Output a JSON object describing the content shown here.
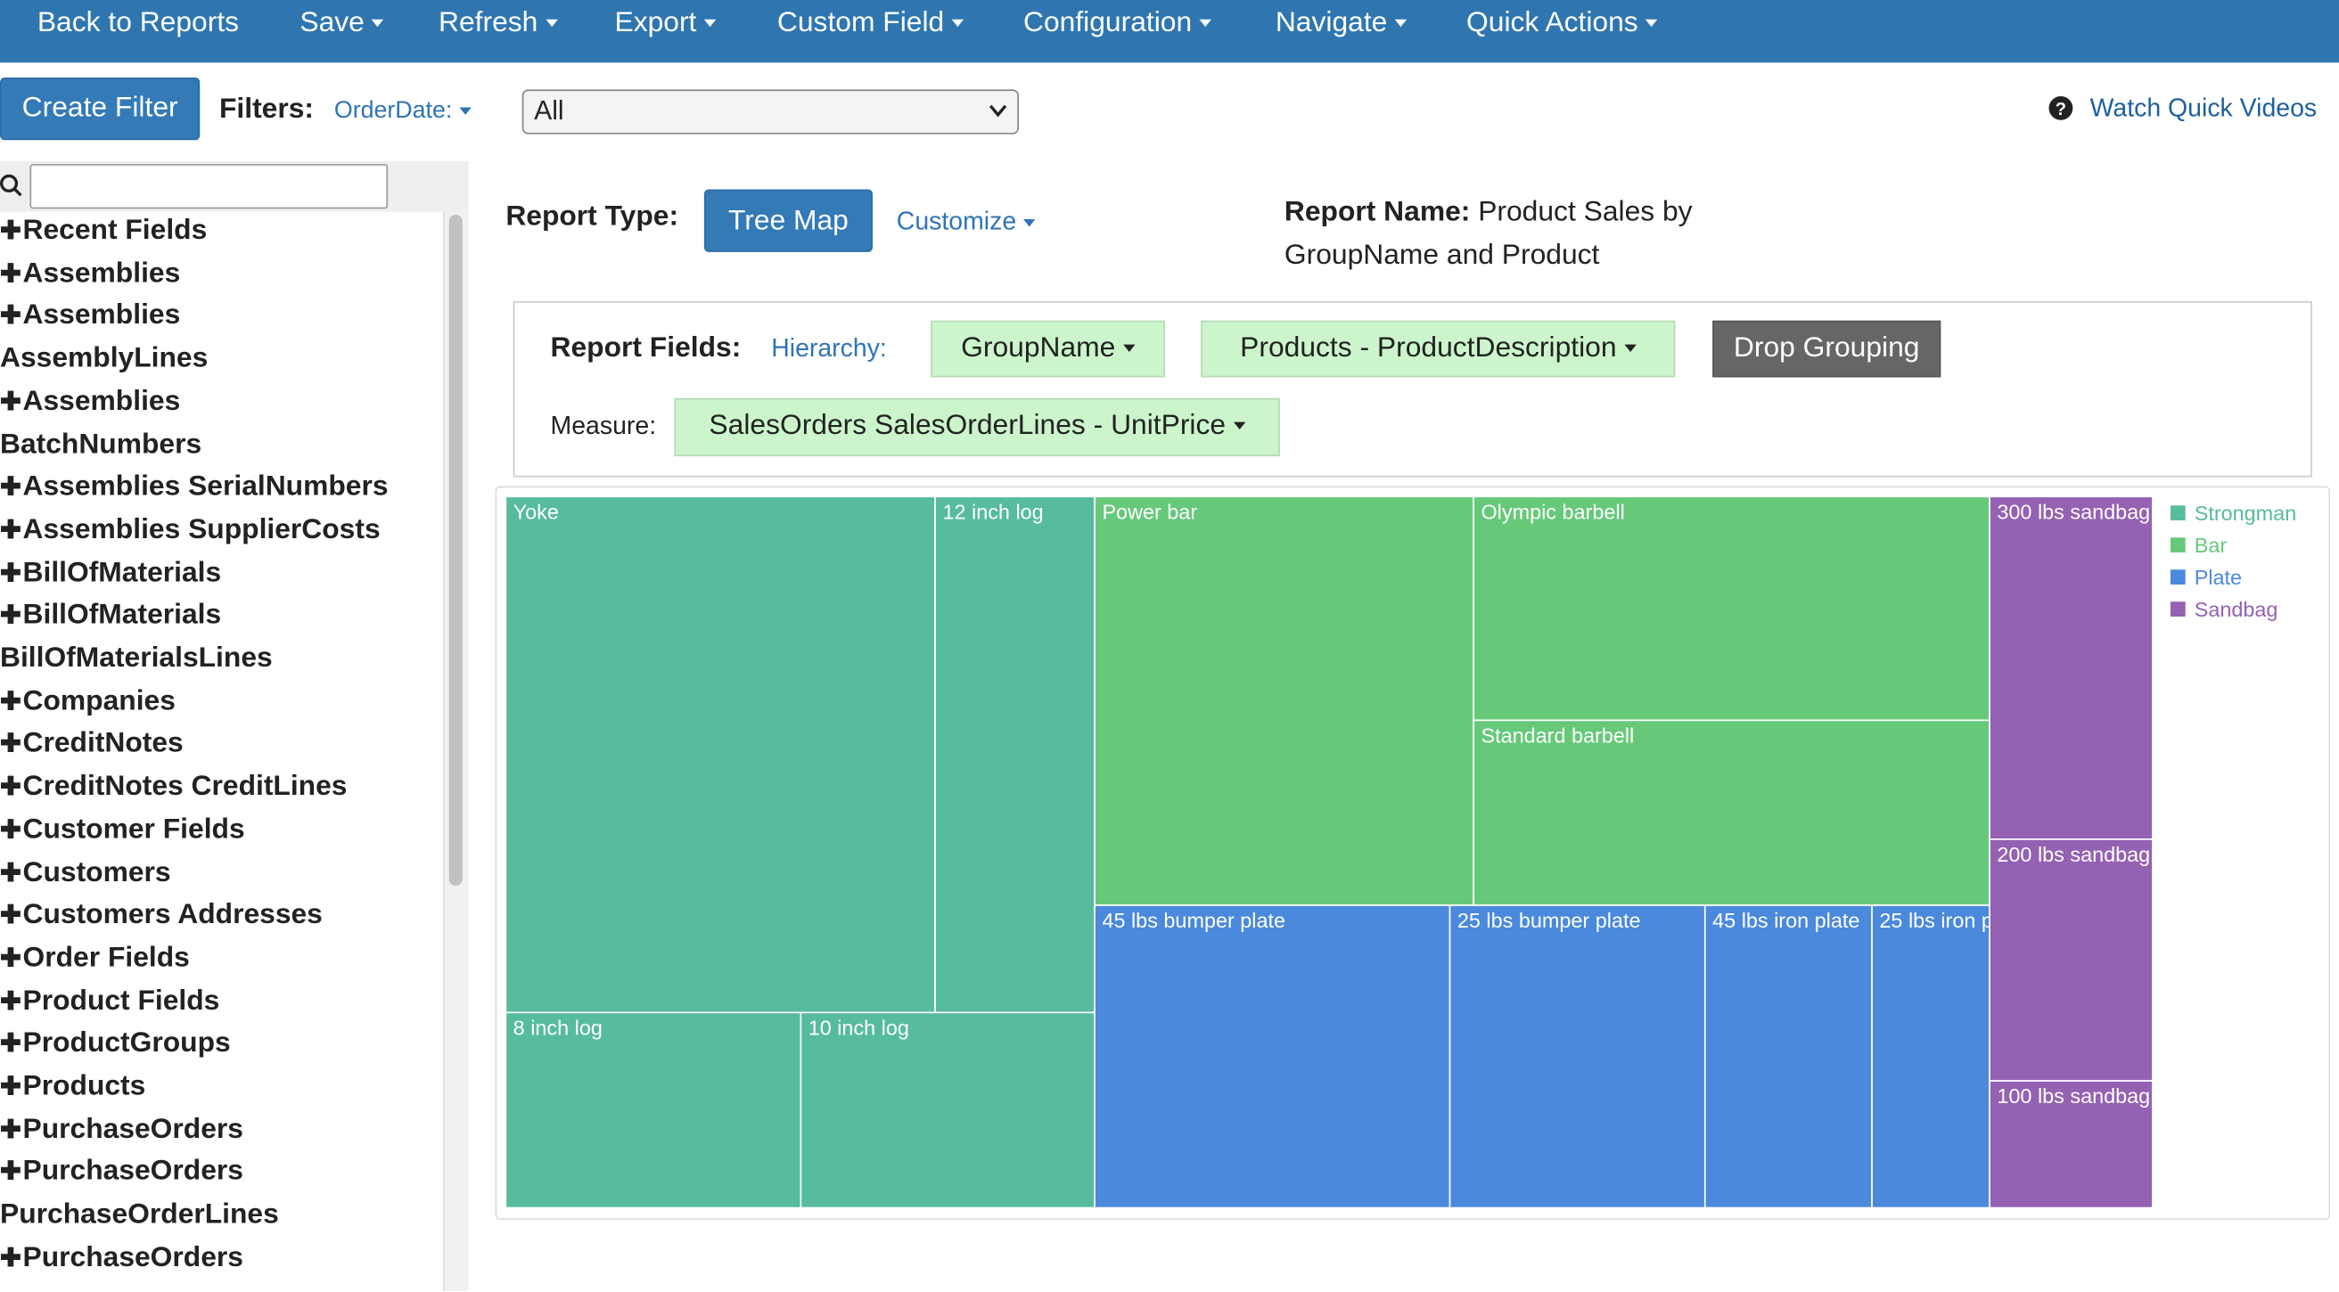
{
  "nav": {
    "items": [
      "Back to Reports",
      "Save",
      "Refresh",
      "Export",
      "Custom Field",
      "Configuration",
      "Navigate",
      "Quick Actions"
    ],
    "dropdown": [
      false,
      true,
      true,
      true,
      true,
      true,
      true,
      true
    ]
  },
  "filters": {
    "create_filter": "Create Filter",
    "label": "Filters:",
    "field": "OrderDate:",
    "selected": "All",
    "help": "Watch Quick Videos"
  },
  "sidebar": {
    "items": [
      {
        "text": "Recent Fields",
        "expandable": true
      },
      {
        "text": "Assemblies",
        "expandable": true
      },
      {
        "text": "Assemblies",
        "expandable": true
      },
      {
        "text": "AssemblyLines",
        "expandable": false
      },
      {
        "text": "Assemblies",
        "expandable": true
      },
      {
        "text": "BatchNumbers",
        "expandable": false
      },
      {
        "text": "Assemblies SerialNumbers",
        "expandable": true
      },
      {
        "text": "Assemblies SupplierCosts",
        "expandable": true
      },
      {
        "text": "BillOfMaterials",
        "expandable": true
      },
      {
        "text": "BillOfMaterials",
        "expandable": true
      },
      {
        "text": "BillOfMaterialsLines",
        "expandable": false
      },
      {
        "text": "Companies",
        "expandable": true
      },
      {
        "text": "CreditNotes",
        "expandable": true
      },
      {
        "text": "CreditNotes CreditLines",
        "expandable": true
      },
      {
        "text": "Customer Fields",
        "expandable": true
      },
      {
        "text": "Customers",
        "expandable": true
      },
      {
        "text": "Customers Addresses",
        "expandable": true
      },
      {
        "text": "Order Fields",
        "expandable": true
      },
      {
        "text": "Product Fields",
        "expandable": true
      },
      {
        "text": "ProductGroups",
        "expandable": true
      },
      {
        "text": "Products",
        "expandable": true
      },
      {
        "text": "PurchaseOrders",
        "expandable": true
      },
      {
        "text": "PurchaseOrders",
        "expandable": true
      },
      {
        "text": "PurchaseOrderLines",
        "expandable": false
      },
      {
        "text": "PurchaseOrders",
        "expandable": true
      }
    ]
  },
  "report": {
    "type_label": "Report Type:",
    "type_button": "Tree Map",
    "customize": "Customize",
    "name_label": "Report Name:",
    "name": "Product Sales by GroupName and Product",
    "fields_label": "Report Fields:",
    "hierarchy_label": "Hierarchy:",
    "hierarchy": [
      "GroupName",
      "Products - ProductDescription"
    ],
    "drop_grouping": "Drop Grouping",
    "measure_label": "Measure:",
    "measure": "SalesOrders SalesOrderLines - UnitPrice"
  },
  "chart_data": {
    "type": "treemap",
    "legend": "right",
    "series": [
      {
        "name": "Strongman",
        "color": "#57bb9d",
        "categories": [
          "Yoke",
          "12 inch log",
          "8 inch log",
          "10 inch log"
        ],
        "values": [
          996,
          370,
          259,
          258
        ]
      },
      {
        "name": "Bar",
        "color": "#66c97a",
        "categories": [
          "Power bar",
          "Olympic barbell",
          "Standard barbell"
        ],
        "values": [
          696,
          519,
          429
        ]
      },
      {
        "name": "Plate",
        "color": "#4a89dc",
        "categories": [
          "45 lbs bumper plate",
          "25 lbs bumper plate",
          "45 lbs iron plate",
          "25 lbs iron plate"
        ],
        "values": [
          483,
          347,
          227,
          160
        ]
      },
      {
        "name": "Sandbag",
        "color": "#9461b3",
        "categories": [
          "300 lbs sandbag",
          "200 lbs sandbag",
          "100 lbs sandbag"
        ],
        "values": [
          251,
          177,
          93
        ]
      }
    ]
  }
}
